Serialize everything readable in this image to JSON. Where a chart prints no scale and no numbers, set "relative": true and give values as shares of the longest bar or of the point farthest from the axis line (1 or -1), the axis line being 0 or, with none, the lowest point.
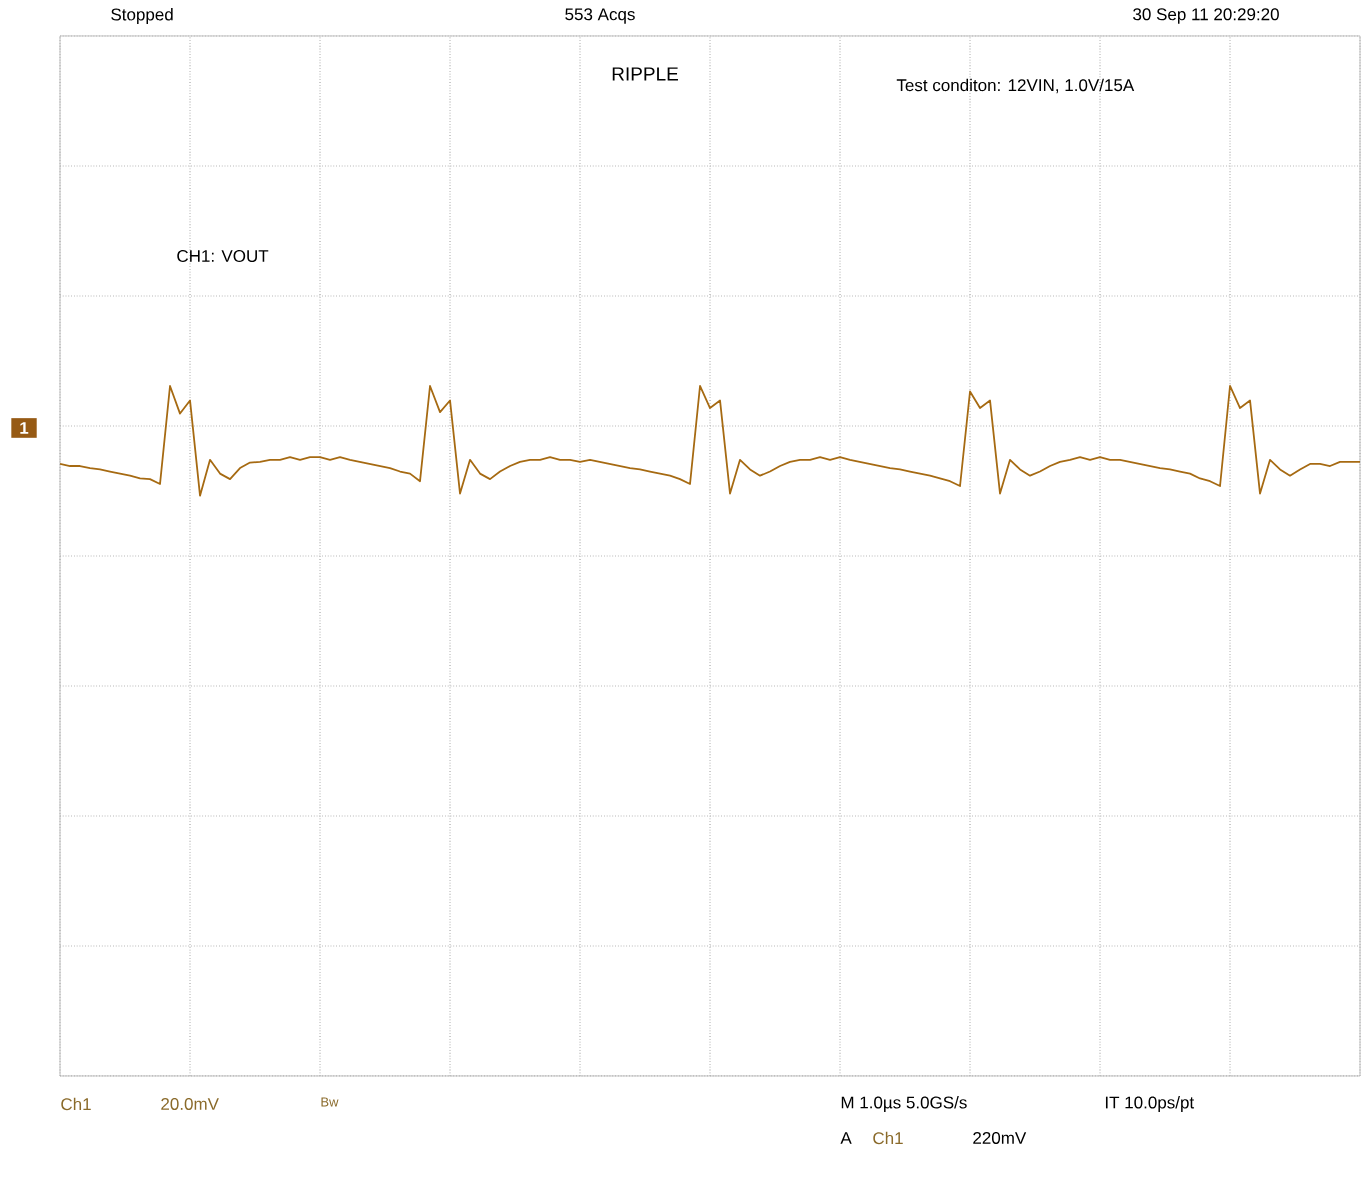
{
  "chart_data": {
    "type": "line",
    "relative": true,
    "title": "RIPPLE",
    "grid": true,
    "legend": false,
    "marker": "none",
    "line_style": "solid",
    "categories": [
      null,
      null,
      null,
      null,
      null,
      null,
      null,
      null,
      null,
      null,
      null,
      null,
      null,
      null,
      null,
      null,
      null,
      null,
      null,
      null,
      null,
      null,
      null,
      null,
      null,
      null,
      null,
      null,
      null,
      null,
      null,
      null,
      null,
      null,
      null,
      null,
      null,
      null,
      null,
      null,
      null,
      null,
      null,
      null,
      null,
      null,
      null,
      null,
      null,
      null,
      null,
      null,
      null,
      null,
      null,
      null,
      null,
      null,
      null,
      null,
      null,
      null,
      null,
      null,
      null,
      null,
      null,
      null,
      null,
      null,
      null,
      null,
      null,
      null,
      null,
      null,
      null,
      null,
      null,
      null,
      null,
      null,
      null,
      null,
      null,
      null,
      null,
      null,
      null,
      null,
      null,
      null,
      null,
      null,
      null,
      null,
      null,
      null,
      null,
      null,
      null,
      null,
      null,
      null,
      null,
      null,
      null,
      null,
      null,
      null,
      null,
      null,
      null,
      null,
      null,
      null,
      null,
      null,
      null,
      null,
      null,
      null,
      null,
      null,
      null,
      null,
      null,
      null,
      null,
      null,
      null
    ],
    "series": [
      {
        "name": "CH1: VOUT",
        "color": "#a66a12",
        "values": [
          0.887,
          0.884,
          0.884,
          0.881,
          0.879,
          0.876,
          0.873,
          0.87,
          0.866,
          0.865,
          0.858,
          1,
          0.96,
          0.979,
          0.841,
          0.893,
          0.873,
          0.865,
          0.881,
          0.889,
          0.89,
          0.893,
          0.893,
          0.897,
          0.893,
          0.897,
          0.897,
          0.893,
          0.897,
          0.893,
          0.89,
          0.887,
          0.884,
          0.881,
          0.876,
          0.873,
          0.862,
          1,
          0.962,
          0.979,
          0.844,
          0.893,
          0.873,
          0.865,
          0.876,
          0.884,
          0.89,
          0.893,
          0.893,
          0.897,
          0.893,
          0.893,
          0.89,
          0.893,
          0.89,
          0.887,
          0.884,
          0.881,
          0.879,
          0.876,
          0.873,
          0.87,
          0.865,
          0.858,
          1,
          0.968,
          0.979,
          0.844,
          0.893,
          0.879,
          0.87,
          0.876,
          0.884,
          0.89,
          0.893,
          0.893,
          0.897,
          0.893,
          0.897,
          0.893,
          0.89,
          0.887,
          0.884,
          0.881,
          0.879,
          0.876,
          0.873,
          0.87,
          0.866,
          0.862,
          0.855,
          0.992,
          0.968,
          0.979,
          0.844,
          0.893,
          0.879,
          0.87,
          0.876,
          0.884,
          0.89,
          0.893,
          0.897,
          0.893,
          0.897,
          0.893,
          0.893,
          0.89,
          0.887,
          0.884,
          0.881,
          0.879,
          0.876,
          0.873,
          0.866,
          0.862,
          0.855,
          1,
          0.968,
          0.979,
          0.844,
          0.893,
          0.879,
          0.87,
          0.879,
          0.887,
          0.887,
          0.884,
          0.89,
          0.89,
          0.89
        ]
      }
    ],
    "annotations": [
      "Stopped",
      "553 Acqs",
      "30 Sep 11 20:29:20",
      "Test conditon: 12VIN, 1.0V/15A",
      "1",
      "Ch1",
      "20.0mV",
      "Bw",
      "M 1.0µs 5.0GS/s",
      "IT 10.0ps/pt",
      "A",
      "Ch1",
      "220mV"
    ]
  }
}
